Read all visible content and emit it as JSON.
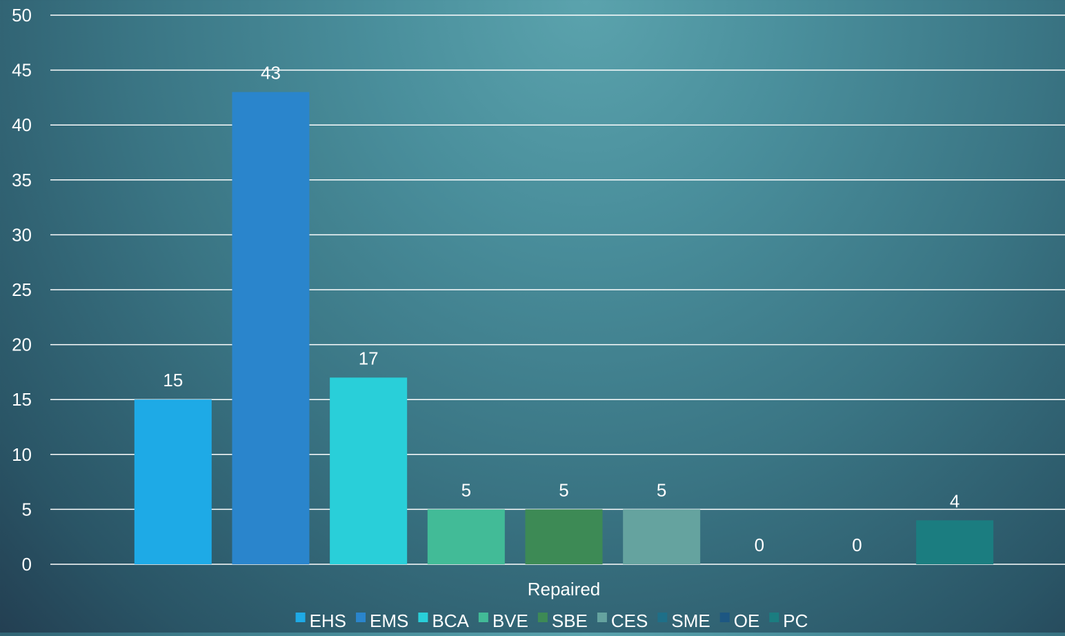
{
  "chart_data": {
    "type": "bar",
    "categories": [
      "Repaired"
    ],
    "series": [
      {
        "name": "EHS",
        "values": [
          15
        ],
        "color": "#1eaae6"
      },
      {
        "name": "EMS",
        "values": [
          43
        ],
        "color": "#2a85cc"
      },
      {
        "name": "BCA",
        "values": [
          17
        ],
        "color": "#29cfd9"
      },
      {
        "name": "BVE",
        "values": [
          5
        ],
        "color": "#42bb97"
      },
      {
        "name": "SBE",
        "values": [
          5
        ],
        "color": "#3d8a55"
      },
      {
        "name": "CES",
        "values": [
          5
        ],
        "color": "#65a39f"
      },
      {
        "name": "SME",
        "values": [
          0
        ],
        "color": "#1e6f88"
      },
      {
        "name": "OE",
        "values": [
          0
        ],
        "color": "#1d5782"
      },
      {
        "name": "PC",
        "values": [
          4
        ],
        "color": "#1b7d80"
      }
    ],
    "ylim": [
      0,
      50
    ],
    "yticks": [
      0,
      5,
      10,
      15,
      20,
      25,
      30,
      35,
      40,
      45,
      50
    ],
    "title": "",
    "xlabel": "",
    "ylabel": "",
    "grid": true,
    "legend": "bottom",
    "data_labels": true
  }
}
